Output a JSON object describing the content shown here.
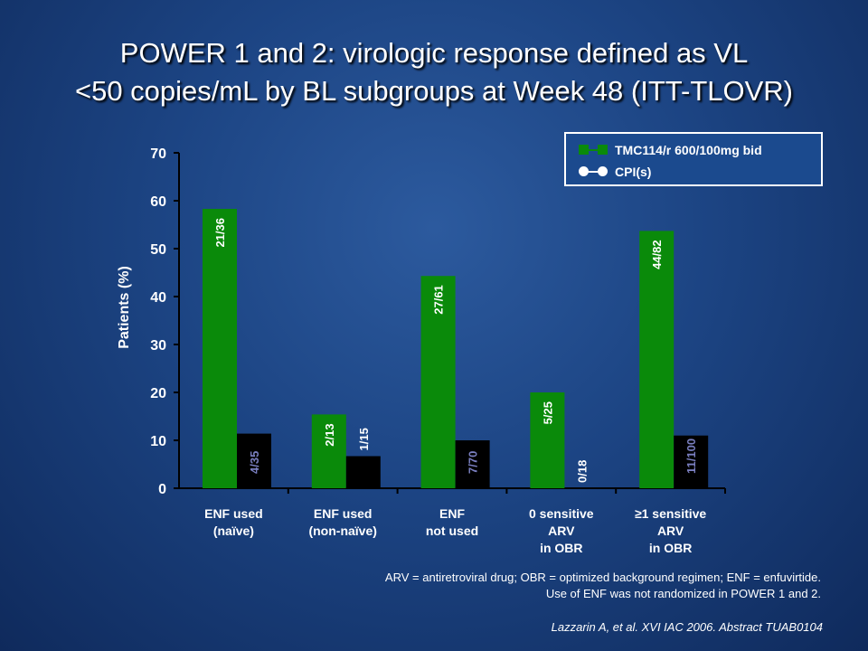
{
  "title": {
    "line1": "POWER 1 and 2: virologic response defined as VL",
    "line2": "<50 copies/mL by BL subgroups at Week 48 (ITT-TLOVR)"
  },
  "legend": {
    "items": [
      {
        "label": "TMC114/r 600/100mg bid",
        "color": "#0a8a0a",
        "icon": "square-line-marker"
      },
      {
        "label": "CPI(s)",
        "color": "#000000",
        "icon": "circle-line-marker"
      }
    ]
  },
  "chart_data": {
    "type": "bar",
    "ylabel": "Patients (%)",
    "xlabel": "",
    "ylim": [
      0,
      70
    ],
    "yticks": [
      0,
      10,
      20,
      30,
      40,
      50,
      60,
      70
    ],
    "categories": [
      [
        "ENF used",
        "(naïve)"
      ],
      [
        "ENF used",
        "(non-naïve)"
      ],
      [
        "ENF",
        "not used"
      ],
      [
        "0 sensitive",
        "ARV",
        "in OBR"
      ],
      [
        "≥1 sensitive",
        "ARV",
        "in OBR"
      ]
    ],
    "series": [
      {
        "name": "TMC114/r 600/100mg bid",
        "color": "#0a8a0a",
        "values": [
          58.3,
          15.4,
          44.3,
          20.0,
          53.7
        ],
        "labels": [
          "21/36",
          "2/13",
          "27/61",
          "5/25",
          "44/82"
        ]
      },
      {
        "name": "CPI(s)",
        "color": "#000000",
        "values": [
          11.4,
          6.7,
          10.0,
          0.0,
          11.0
        ],
        "labels": [
          "4/35",
          "1/15",
          "7/70",
          "0/18",
          "11/100"
        ]
      }
    ]
  },
  "footnote": {
    "line1": "ARV = antiretroviral drug; OBR = optimized background regimen; ENF = enfuvirtide.",
    "line2": "Use of ENF was not randomized in POWER 1 and 2."
  },
  "citation": "Lazzarin A, et al. XVI IAC 2006. Abstract TUAB0104"
}
